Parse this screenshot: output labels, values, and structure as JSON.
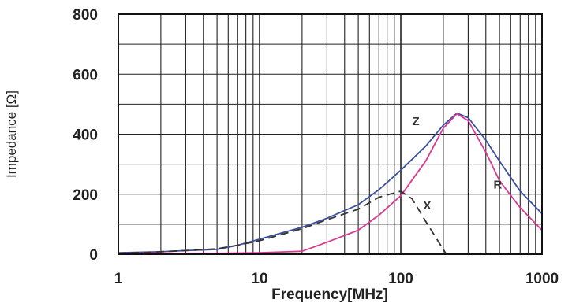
{
  "chart_data": {
    "type": "line",
    "title": "",
    "xlabel": "Frequency[MHz]",
    "ylabel": "Impedance [Ω]",
    "xscale": "log",
    "xlim": [
      1,
      1000
    ],
    "ylim": [
      0,
      800
    ],
    "x_ticks": [
      "1",
      "10",
      "100",
      "1000"
    ],
    "y_ticks": [
      "0",
      "200",
      "400",
      "600",
      "800"
    ],
    "grid": true,
    "series": [
      {
        "name": "Z",
        "color": "#3b4f9c",
        "points": [
          [
            1,
            5
          ],
          [
            2,
            8
          ],
          [
            3,
            12
          ],
          [
            5,
            16
          ],
          [
            7,
            30
          ],
          [
            10,
            50
          ],
          [
            20,
            90
          ],
          [
            30,
            120
          ],
          [
            50,
            165
          ],
          [
            70,
            215
          ],
          [
            100,
            280
          ],
          [
            150,
            360
          ],
          [
            200,
            430
          ],
          [
            250,
            470
          ],
          [
            300,
            455
          ],
          [
            400,
            380
          ],
          [
            500,
            310
          ],
          [
            700,
            210
          ],
          [
            1000,
            135
          ]
        ]
      },
      {
        "name": "R",
        "color": "#d63a93",
        "points": [
          [
            1,
            1
          ],
          [
            3,
            2
          ],
          [
            5,
            3
          ],
          [
            10,
            5
          ],
          [
            20,
            10
          ],
          [
            30,
            40
          ],
          [
            50,
            80
          ],
          [
            70,
            130
          ],
          [
            100,
            195
          ],
          [
            150,
            310
          ],
          [
            200,
            420
          ],
          [
            250,
            468
          ],
          [
            300,
            445
          ],
          [
            400,
            340
          ],
          [
            500,
            245
          ],
          [
            700,
            155
          ],
          [
            1000,
            80
          ]
        ]
      },
      {
        "name": "X",
        "color": "#333333",
        "style": "dashed",
        "points": [
          [
            1,
            3
          ],
          [
            2,
            8
          ],
          [
            3,
            12
          ],
          [
            5,
            18
          ],
          [
            7,
            30
          ],
          [
            10,
            45
          ],
          [
            20,
            85
          ],
          [
            30,
            115
          ],
          [
            50,
            150
          ],
          [
            70,
            190
          ],
          [
            100,
            210
          ],
          [
            120,
            185
          ],
          [
            150,
            110
          ],
          [
            180,
            50
          ],
          [
            210,
            0
          ]
        ]
      }
    ]
  }
}
